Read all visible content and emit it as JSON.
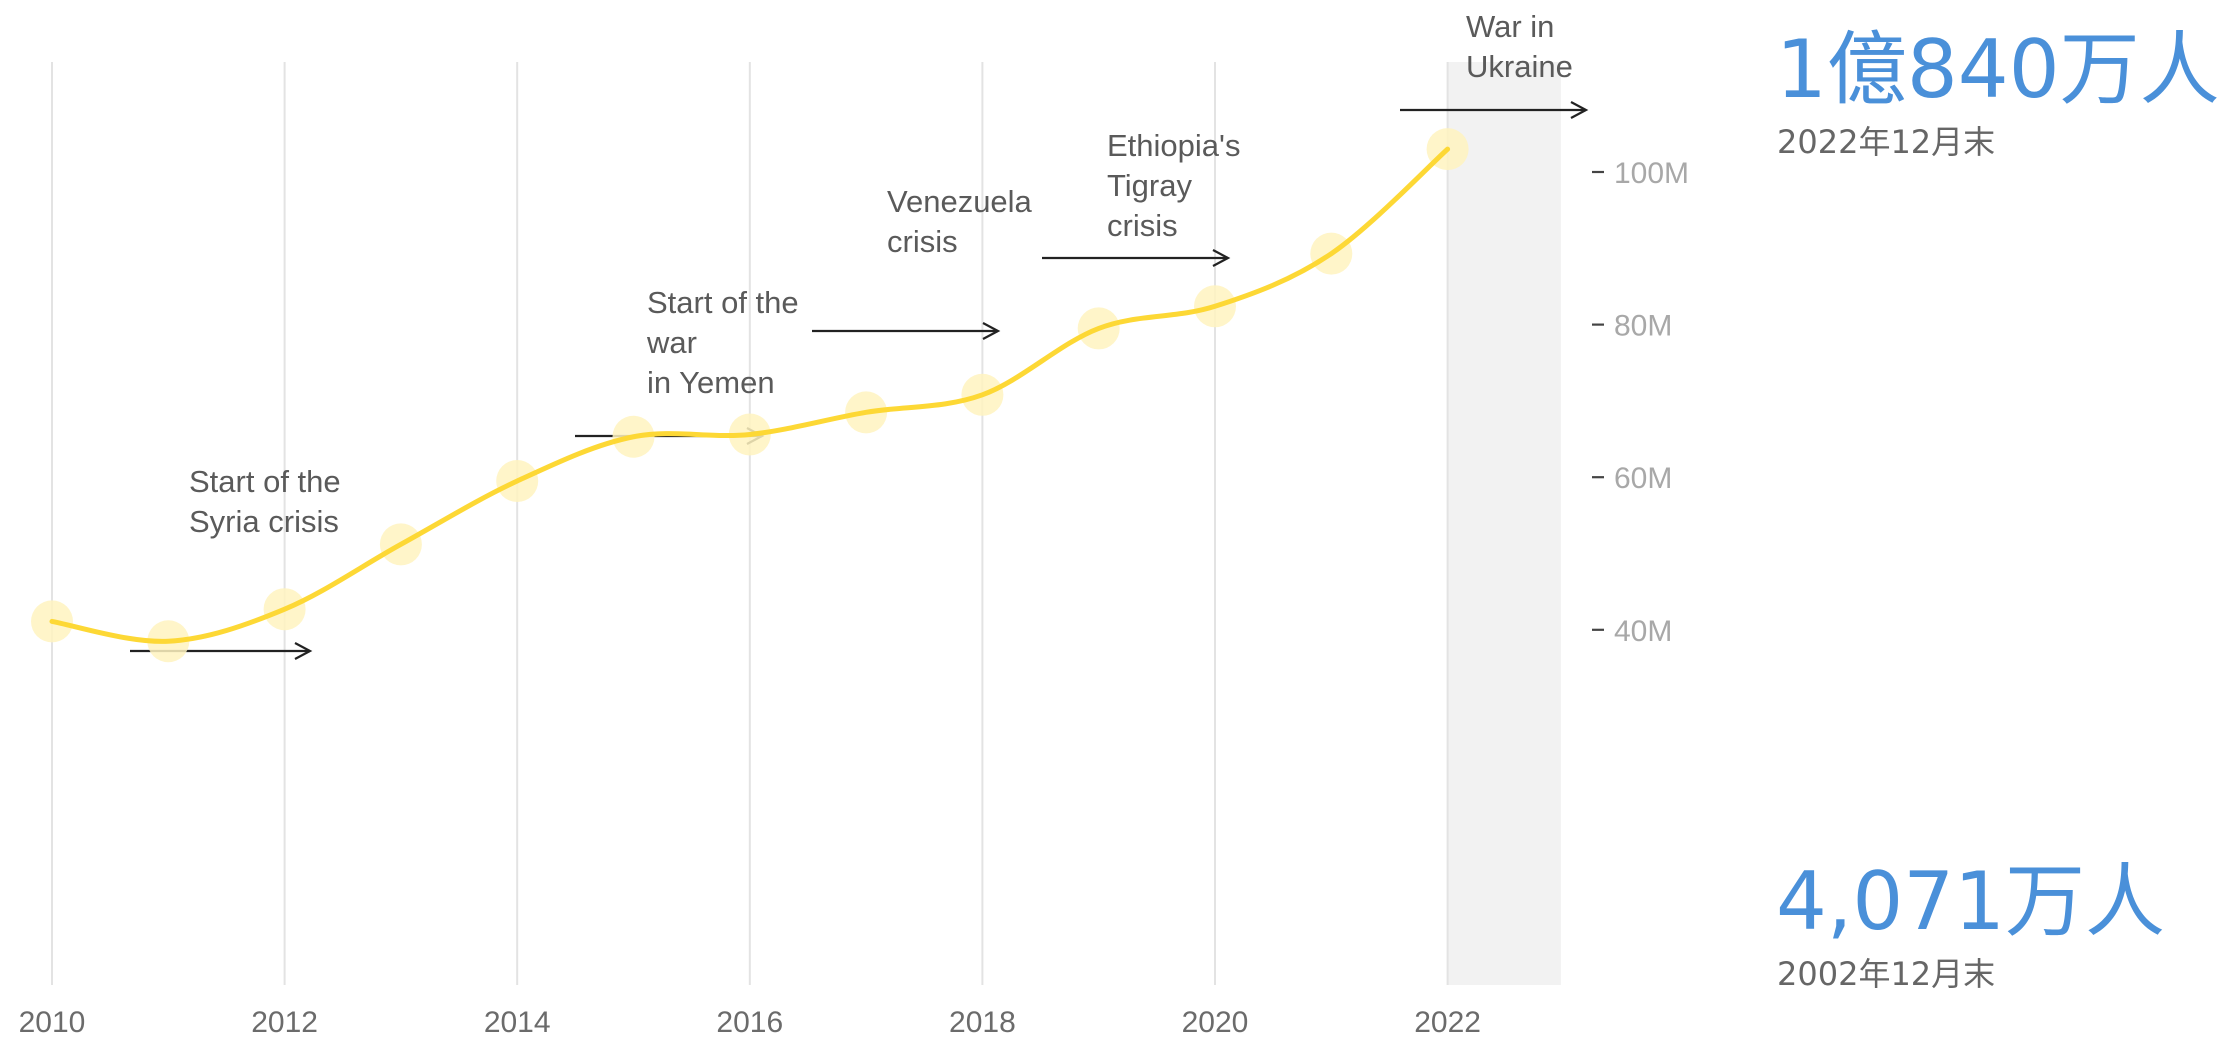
{
  "chart_data": {
    "type": "line",
    "x": [
      2010,
      2011,
      2012,
      2013,
      2014,
      2015,
      2016,
      2017,
      2018,
      2019,
      2020,
      2021,
      2022
    ],
    "series": [
      {
        "values": [
          41.1,
          38.5,
          42.7,
          51.2,
          59.5,
          65.3,
          65.6,
          68.5,
          70.8,
          79.5,
          82.4,
          89.3,
          103.0
        ]
      }
    ],
    "x_ticks": [
      "2010",
      "2012",
      "2014",
      "2016",
      "2018",
      "2020",
      "2022"
    ],
    "y_ticks": [
      "40M",
      "60M",
      "80M",
      "100M"
    ],
    "y_tick_values": [
      40,
      60,
      80,
      100
    ],
    "xlim": [
      2010,
      2023
    ],
    "ylim": [
      25,
      110
    ],
    "y_axis_position": "right",
    "grid": "vertical",
    "shaded_region": [
      2022,
      2023
    ],
    "line_color": "#fdd835",
    "marker_color": "#fff3c0",
    "annotations": [
      {
        "lines": [
          "Start of the",
          "Syria crisis"
        ],
        "year": 2011
      },
      {
        "lines": [
          "Start of the",
          "war",
          "in Yemen"
        ],
        "year": 2015
      },
      {
        "lines": [
          "Venezuela",
          "crisis"
        ],
        "year": 2017
      },
      {
        "lines": [
          "Ethiopia's",
          "Tigray",
          "crisis"
        ],
        "year": 2019
      },
      {
        "lines": [
          "War in",
          "Ukraine"
        ],
        "year": 2022
      }
    ]
  },
  "callouts": {
    "top_value": "1億840万人",
    "top_date": "2022年12月末",
    "bottom_value": "4,071万人",
    "bottom_date": "2002年12月末",
    "value_color": "#4a90d9"
  }
}
